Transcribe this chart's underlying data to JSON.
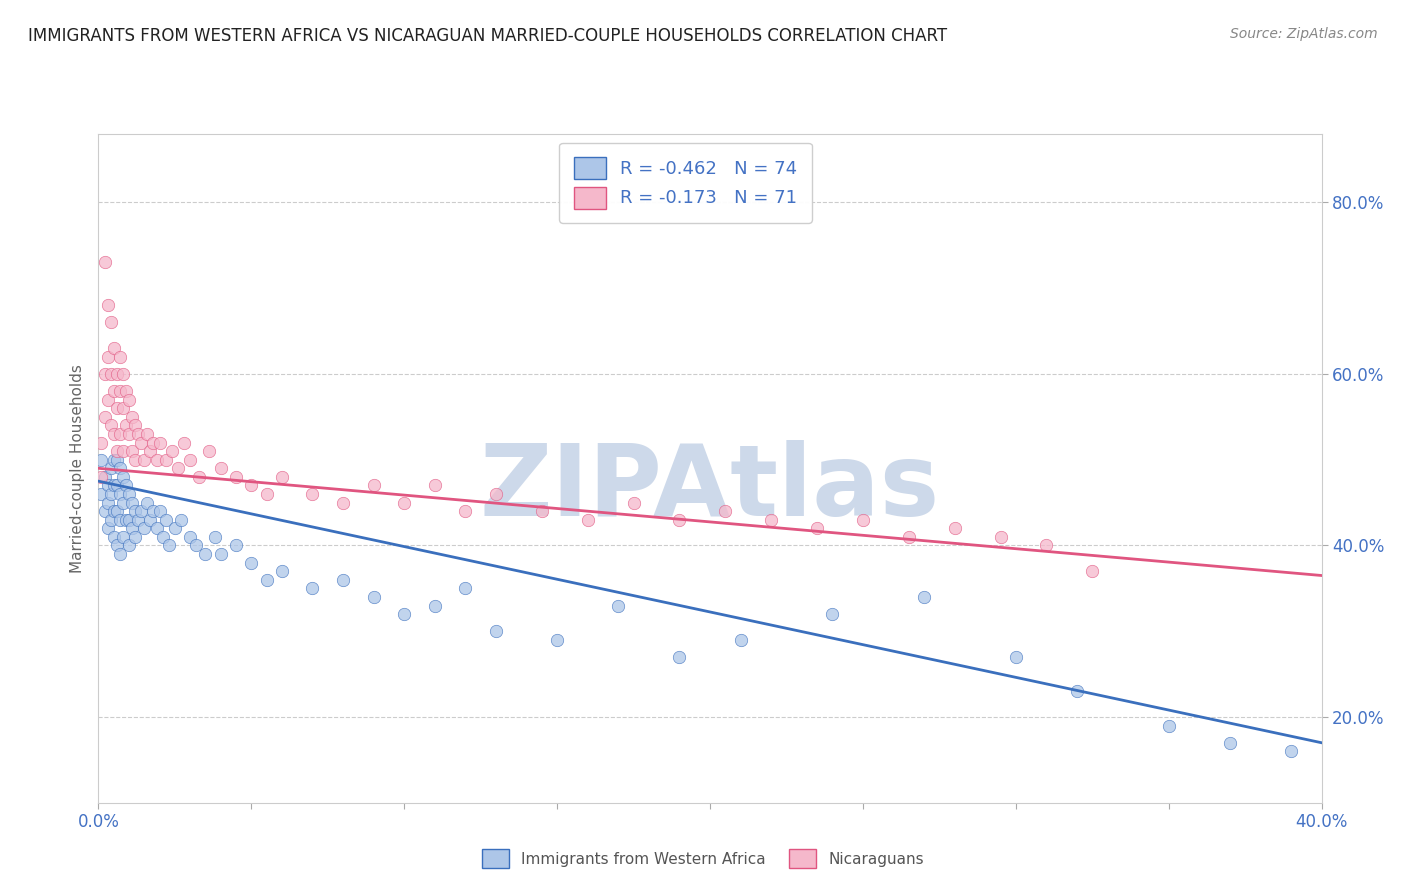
{
  "title": "IMMIGRANTS FROM WESTERN AFRICA VS NICARAGUAN MARRIED-COUPLE HOUSEHOLDS CORRELATION CHART",
  "source": "Source: ZipAtlas.com",
  "ylabel": "Married-couple Households",
  "legend_label_1": "Immigrants from Western Africa",
  "legend_label_2": "Nicaraguans",
  "R1": -0.462,
  "N1": 74,
  "R2": -0.173,
  "N2": 71,
  "color1": "#adc6e8",
  "color2": "#f5b8cb",
  "line_color1": "#3a6fbd",
  "line_color2": "#e05580",
  "xlim": [
    0.0,
    0.4
  ],
  "ylim": [
    0.1,
    0.88
  ],
  "yticks": [
    0.2,
    0.4,
    0.6,
    0.8
  ],
  "background_color": "#ffffff",
  "grid_color": "#cccccc",
  "title_color": "#222222",
  "axis_label_color": "#4472c4",
  "watermark": "ZIPAtlas",
  "watermark_color": "#cdd9ea",
  "blue_line_x0": 0.0,
  "blue_line_y0": 0.475,
  "blue_line_x1": 0.4,
  "blue_line_y1": 0.17,
  "pink_line_x0": 0.0,
  "pink_line_y0": 0.49,
  "pink_line_x1": 0.4,
  "pink_line_y1": 0.365,
  "blue_scatter_x": [
    0.001,
    0.001,
    0.002,
    0.002,
    0.003,
    0.003,
    0.003,
    0.004,
    0.004,
    0.004,
    0.005,
    0.005,
    0.005,
    0.005,
    0.006,
    0.006,
    0.006,
    0.006,
    0.007,
    0.007,
    0.007,
    0.007,
    0.008,
    0.008,
    0.008,
    0.009,
    0.009,
    0.01,
    0.01,
    0.01,
    0.011,
    0.011,
    0.012,
    0.012,
    0.013,
    0.014,
    0.015,
    0.016,
    0.017,
    0.018,
    0.019,
    0.02,
    0.021,
    0.022,
    0.023,
    0.025,
    0.027,
    0.03,
    0.032,
    0.035,
    0.038,
    0.04,
    0.045,
    0.05,
    0.055,
    0.06,
    0.07,
    0.08,
    0.09,
    0.1,
    0.11,
    0.12,
    0.13,
    0.15,
    0.17,
    0.19,
    0.21,
    0.24,
    0.27,
    0.3,
    0.32,
    0.35,
    0.37,
    0.39
  ],
  "blue_scatter_y": [
    0.5,
    0.46,
    0.48,
    0.44,
    0.47,
    0.45,
    0.42,
    0.49,
    0.46,
    0.43,
    0.5,
    0.47,
    0.44,
    0.41,
    0.5,
    0.47,
    0.44,
    0.4,
    0.49,
    0.46,
    0.43,
    0.39,
    0.48,
    0.45,
    0.41,
    0.47,
    0.43,
    0.46,
    0.43,
    0.4,
    0.45,
    0.42,
    0.44,
    0.41,
    0.43,
    0.44,
    0.42,
    0.45,
    0.43,
    0.44,
    0.42,
    0.44,
    0.41,
    0.43,
    0.4,
    0.42,
    0.43,
    0.41,
    0.4,
    0.39,
    0.41,
    0.39,
    0.4,
    0.38,
    0.36,
    0.37,
    0.35,
    0.36,
    0.34,
    0.32,
    0.33,
    0.35,
    0.3,
    0.29,
    0.33,
    0.27,
    0.29,
    0.32,
    0.34,
    0.27,
    0.23,
    0.19,
    0.17,
    0.16
  ],
  "pink_scatter_x": [
    0.001,
    0.001,
    0.002,
    0.002,
    0.002,
    0.003,
    0.003,
    0.003,
    0.004,
    0.004,
    0.004,
    0.005,
    0.005,
    0.005,
    0.006,
    0.006,
    0.006,
    0.007,
    0.007,
    0.007,
    0.008,
    0.008,
    0.008,
    0.009,
    0.009,
    0.01,
    0.01,
    0.011,
    0.011,
    0.012,
    0.012,
    0.013,
    0.014,
    0.015,
    0.016,
    0.017,
    0.018,
    0.019,
    0.02,
    0.022,
    0.024,
    0.026,
    0.028,
    0.03,
    0.033,
    0.036,
    0.04,
    0.045,
    0.05,
    0.055,
    0.06,
    0.07,
    0.08,
    0.09,
    0.1,
    0.11,
    0.12,
    0.13,
    0.145,
    0.16,
    0.175,
    0.19,
    0.205,
    0.22,
    0.235,
    0.25,
    0.265,
    0.28,
    0.295,
    0.31,
    0.325
  ],
  "pink_scatter_y": [
    0.52,
    0.48,
    0.73,
    0.6,
    0.55,
    0.68,
    0.62,
    0.57,
    0.66,
    0.6,
    0.54,
    0.63,
    0.58,
    0.53,
    0.6,
    0.56,
    0.51,
    0.62,
    0.58,
    0.53,
    0.6,
    0.56,
    0.51,
    0.58,
    0.54,
    0.57,
    0.53,
    0.55,
    0.51,
    0.54,
    0.5,
    0.53,
    0.52,
    0.5,
    0.53,
    0.51,
    0.52,
    0.5,
    0.52,
    0.5,
    0.51,
    0.49,
    0.52,
    0.5,
    0.48,
    0.51,
    0.49,
    0.48,
    0.47,
    0.46,
    0.48,
    0.46,
    0.45,
    0.47,
    0.45,
    0.47,
    0.44,
    0.46,
    0.44,
    0.43,
    0.45,
    0.43,
    0.44,
    0.43,
    0.42,
    0.43,
    0.41,
    0.42,
    0.41,
    0.4,
    0.37
  ]
}
